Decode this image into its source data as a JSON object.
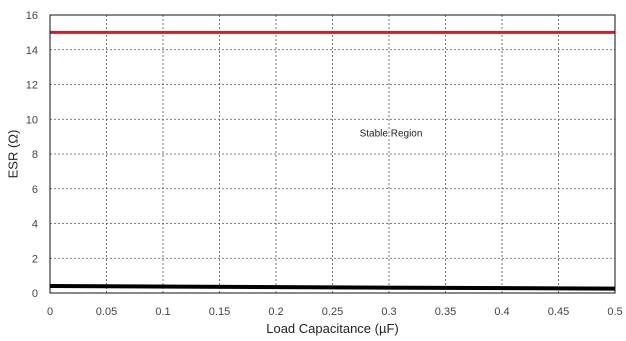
{
  "chart_data": {
    "type": "line",
    "title": "",
    "xlabel": "Load Capacitance (µF)",
    "ylabel": "ESR (Ω)",
    "xlim": [
      0,
      0.5
    ],
    "ylim": [
      0,
      16
    ],
    "x_ticks": [
      0,
      0.05,
      0.1,
      0.15,
      0.2,
      0.25,
      0.3,
      0.35,
      0.4,
      0.45,
      0.5
    ],
    "y_ticks": [
      0,
      2,
      4,
      6,
      8,
      10,
      12,
      14,
      16
    ],
    "x_tick_labels": [
      "0",
      "0.05",
      "0.1",
      "0.15",
      "0.2",
      "0.25",
      "0.3",
      "0.35",
      "0.4",
      "0.45",
      "0.5"
    ],
    "y_tick_labels": [
      "0",
      "2",
      "4",
      "6",
      "8",
      "10",
      "12",
      "14",
      "16"
    ],
    "grid": true,
    "series": [
      {
        "x": [
          0,
          0.5
        ],
        "y": [
          15.0,
          15.0
        ],
        "color": "#e8141b"
      },
      {
        "x": [
          0,
          0.5
        ],
        "y": [
          0.4,
          0.25
        ],
        "color": "#000000"
      }
    ],
    "annotations": [
      {
        "text": "Stable Region",
        "x": 0.274,
        "y": 9.0
      }
    ]
  }
}
